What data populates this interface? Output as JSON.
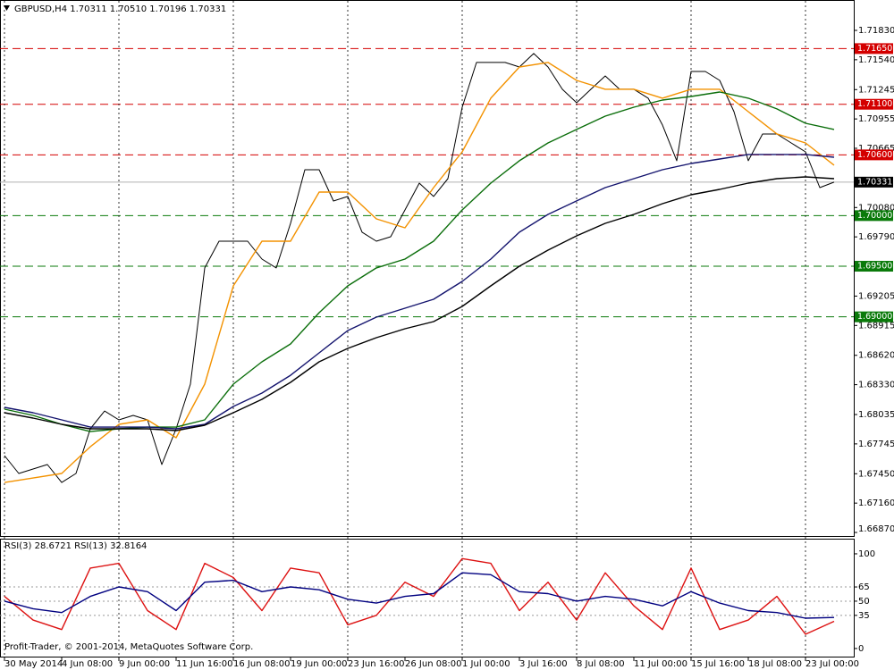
{
  "footer": "Profit-Trader, © 2001-2014, MetaQuotes Software Corp.",
  "chart_data": [
    {
      "type": "line",
      "title": "GBPUSD,H4  1.70311 1.70510 1.70196 1.70331",
      "xlim": [
        -1.25,
        237.5
      ],
      "xticks": [
        {
          "value": 0,
          "label": "30 May 2014"
        },
        {
          "value": 16,
          "label": "4 Jun 08:00"
        },
        {
          "value": 32,
          "label": "9 Jun 00:00"
        },
        {
          "value": 48,
          "label": "11 Jun 16:00"
        },
        {
          "value": 64,
          "label": "16 Jun 08:00"
        },
        {
          "value": 80,
          "label": "19 Jun 00:00"
        },
        {
          "value": 96,
          "label": "23 Jun 16:00"
        },
        {
          "value": 112,
          "label": "26 Jun 08:00"
        },
        {
          "value": 128,
          "label": "1 Jul 00:00"
        },
        {
          "value": 144,
          "label": "3 Jul 16:00"
        },
        {
          "value": 160,
          "label": "8 Jul 08:00"
        },
        {
          "value": 176,
          "label": "11 Jul 00:00"
        },
        {
          "value": 192,
          "label": "15 Jul 16:00"
        },
        {
          "value": 208,
          "label": "18 Jul 08:00"
        },
        {
          "value": 224,
          "label": "23 Jul 00:00"
        }
      ],
      "ylim": [
        1.66835,
        1.7213
      ],
      "yticks": [
        {
          "value": 1.7183,
          "label": "1.71830"
        },
        {
          "value": 1.7154,
          "label": "1.71540"
        },
        1.71245,
        1.70955,
        1.70665,
        {
          "value": 1.7008,
          "label": "1.70080"
        },
        {
          "value": 1.6979,
          "label": "1.69790"
        },
        1.69205,
        1.68915,
        {
          "value": 1.6862,
          "label": "1.68620"
        },
        {
          "value": 1.6833,
          "label": "1.68330"
        },
        1.68035,
        1.67745,
        {
          "value": 1.6745,
          "label": "1.67450"
        },
        {
          "value": 1.6716,
          "label": "1.67160"
        },
        {
          "value": 1.6687,
          "label": "1.66870"
        }
      ],
      "levels": [
        {
          "value": 1.7165,
          "label": "1.71650",
          "color": "#d40000"
        },
        {
          "value": 1.711,
          "label": "1.71100",
          "color": "#d40000"
        },
        {
          "value": 1.706,
          "label": "1.70600",
          "color": "#d40000"
        },
        {
          "value": 1.7,
          "label": "1.70000",
          "color": "#0a7a0a"
        },
        {
          "value": 1.695,
          "label": "1.69500",
          "color": "#0a7a0a"
        },
        {
          "value": 1.69,
          "label": "1.69000",
          "color": "#0a7a0a"
        }
      ],
      "last_price": 1.70331,
      "series": [
        {
          "color": "#000000",
          "x": [
            0,
            4,
            8,
            12,
            16,
            20,
            24,
            28,
            32,
            36,
            40,
            44,
            48,
            52,
            56,
            60,
            64,
            68,
            72,
            76,
            80,
            84,
            88,
            92,
            96,
            100,
            104,
            108,
            112,
            116,
            120,
            124,
            128,
            132,
            136,
            140,
            144,
            148,
            152,
            156,
            160,
            164,
            168,
            172,
            176,
            180,
            184,
            188,
            192,
            196,
            200,
            204,
            208,
            212,
            216,
            220,
            224,
            228,
            232
          ],
          "values": [
            1.67629,
            1.67453,
            1.67497,
            1.67541,
            1.67364,
            1.67453,
            1.67894,
            1.6807,
            1.67982,
            1.68026,
            1.67982,
            1.67541,
            1.67894,
            1.68335,
            1.69483,
            1.69747,
            1.69747,
            1.69747,
            1.69571,
            1.69483,
            1.69924,
            1.70453,
            1.70453,
            1.70144,
            1.70189,
            1.69836,
            1.69747,
            1.69791,
            1.70056,
            1.70321,
            1.70189,
            1.70365,
            1.71071,
            1.71513,
            1.71513,
            1.71513,
            1.71468,
            1.71601,
            1.71468,
            1.71248,
            1.71115,
            1.71248,
            1.7138,
            1.71248,
            1.71248,
            1.7116,
            1.70895,
            1.70542,
            1.71424,
            1.71424,
            1.71336,
            1.71027,
            1.70542,
            1.70806,
            1.70806,
            1.70718,
            1.7063,
            1.70277,
            1.70331
          ]
        },
        {
          "color": "#f39200",
          "x": [
            0,
            8,
            16,
            24,
            32,
            40,
            48,
            56,
            64,
            72,
            80,
            88,
            96,
            104,
            112,
            120,
            128,
            136,
            144,
            152,
            160,
            168,
            176,
            184,
            192,
            200,
            208,
            216,
            224,
            232
          ],
          "values": [
            1.67364,
            1.67408,
            1.67453,
            1.67717,
            1.67938,
            1.67982,
            1.67806,
            1.68335,
            1.69306,
            1.69747,
            1.69747,
            1.70233,
            1.70233,
            1.69968,
            1.6988,
            1.70277,
            1.7063,
            1.7116,
            1.71468,
            1.71513,
            1.71336,
            1.71248,
            1.71248,
            1.7116,
            1.71248,
            1.71248,
            1.71027,
            1.70807,
            1.70718,
            1.70498
          ]
        },
        {
          "color": "#0b6e0b",
          "x": [
            0,
            8,
            16,
            24,
            32,
            40,
            48,
            56,
            64,
            72,
            80,
            88,
            96,
            104,
            112,
            120,
            128,
            136,
            144,
            152,
            160,
            168,
            176,
            184,
            192,
            200,
            208,
            216,
            224,
            232
          ],
          "values": [
            1.68088,
            1.68026,
            1.67938,
            1.67867,
            1.67894,
            1.67911,
            1.67911,
            1.67982,
            1.68335,
            1.68556,
            1.68732,
            1.69041,
            1.69306,
            1.69483,
            1.69571,
            1.69747,
            1.70056,
            1.70321,
            1.70542,
            1.70718,
            1.70851,
            1.70983,
            1.71071,
            1.71142,
            1.71177,
            1.71221,
            1.7116,
            1.71054,
            1.70912,
            1.70851
          ]
        },
        {
          "color": "#14146e",
          "x": [
            0,
            8,
            16,
            24,
            32,
            40,
            48,
            56,
            64,
            72,
            80,
            88,
            96,
            104,
            112,
            120,
            128,
            136,
            144,
            152,
            160,
            168,
            176,
            184,
            192,
            200,
            208,
            216,
            224,
            232
          ],
          "values": [
            1.68106,
            1.68053,
            1.67982,
            1.67911,
            1.67911,
            1.67911,
            1.67894,
            1.67938,
            1.68115,
            1.68247,
            1.68423,
            1.68644,
            1.68865,
            1.68997,
            1.69085,
            1.69174,
            1.6935,
            1.69571,
            1.69836,
            1.70012,
            1.70145,
            1.70277,
            1.70365,
            1.70453,
            1.70515,
            1.70559,
            1.70604,
            1.70604,
            1.70604,
            1.70577
          ]
        },
        {
          "color": "#000000",
          "x": [
            0,
            8,
            16,
            24,
            32,
            40,
            48,
            56,
            64,
            72,
            80,
            88,
            96,
            104,
            112,
            120,
            128,
            136,
            144,
            152,
            160,
            168,
            176,
            184,
            192,
            200,
            208,
            216,
            224,
            232
          ],
          "values": [
            1.68053,
            1.68,
            1.67938,
            1.67894,
            1.67894,
            1.67894,
            1.67876,
            1.67929,
            1.68053,
            1.68185,
            1.68353,
            1.68556,
            1.68688,
            1.68794,
            1.68882,
            1.68953,
            1.69103,
            1.69306,
            1.695,
            1.69659,
            1.698,
            1.69924,
            1.70012,
            1.70118,
            1.70206,
            1.70259,
            1.70321,
            1.70365,
            1.70383,
            1.70365
          ]
        }
      ]
    },
    {
      "type": "line",
      "title": "RSI(3) 28.6721  RSI(13) 32.8164",
      "xlim": [
        -1.25,
        237.5
      ],
      "ylim": [
        -9.5,
        116
      ],
      "yticks": [
        100,
        65,
        50,
        35,
        0
      ],
      "levels": [
        65,
        50,
        35
      ],
      "series": [
        {
          "color": "#dd1111",
          "x": [
            0,
            8,
            16,
            24,
            32,
            40,
            48,
            56,
            64,
            72,
            80,
            88,
            96,
            104,
            112,
            120,
            128,
            136,
            144,
            152,
            160,
            168,
            176,
            184,
            192,
            200,
            208,
            216,
            224,
            232
          ],
          "values": [
            55,
            30,
            20,
            85,
            90,
            40,
            20,
            90,
            75,
            40,
            85,
            80,
            25,
            35,
            70,
            55,
            95,
            90,
            40,
            70,
            30,
            80,
            45,
            20,
            85,
            20,
            30,
            55,
            15,
            28.6721
          ]
        },
        {
          "color": "#000080",
          "x": [
            0,
            8,
            16,
            24,
            32,
            40,
            48,
            56,
            64,
            72,
            80,
            88,
            96,
            104,
            112,
            120,
            128,
            136,
            144,
            152,
            160,
            168,
            176,
            184,
            192,
            200,
            208,
            216,
            224,
            232
          ],
          "values": [
            50,
            42,
            38,
            55,
            65,
            60,
            40,
            70,
            72,
            60,
            65,
            62,
            52,
            48,
            55,
            58,
            80,
            78,
            60,
            58,
            50,
            55,
            52,
            45,
            60,
            48,
            40,
            38,
            32,
            32.8164
          ]
        }
      ]
    }
  ]
}
